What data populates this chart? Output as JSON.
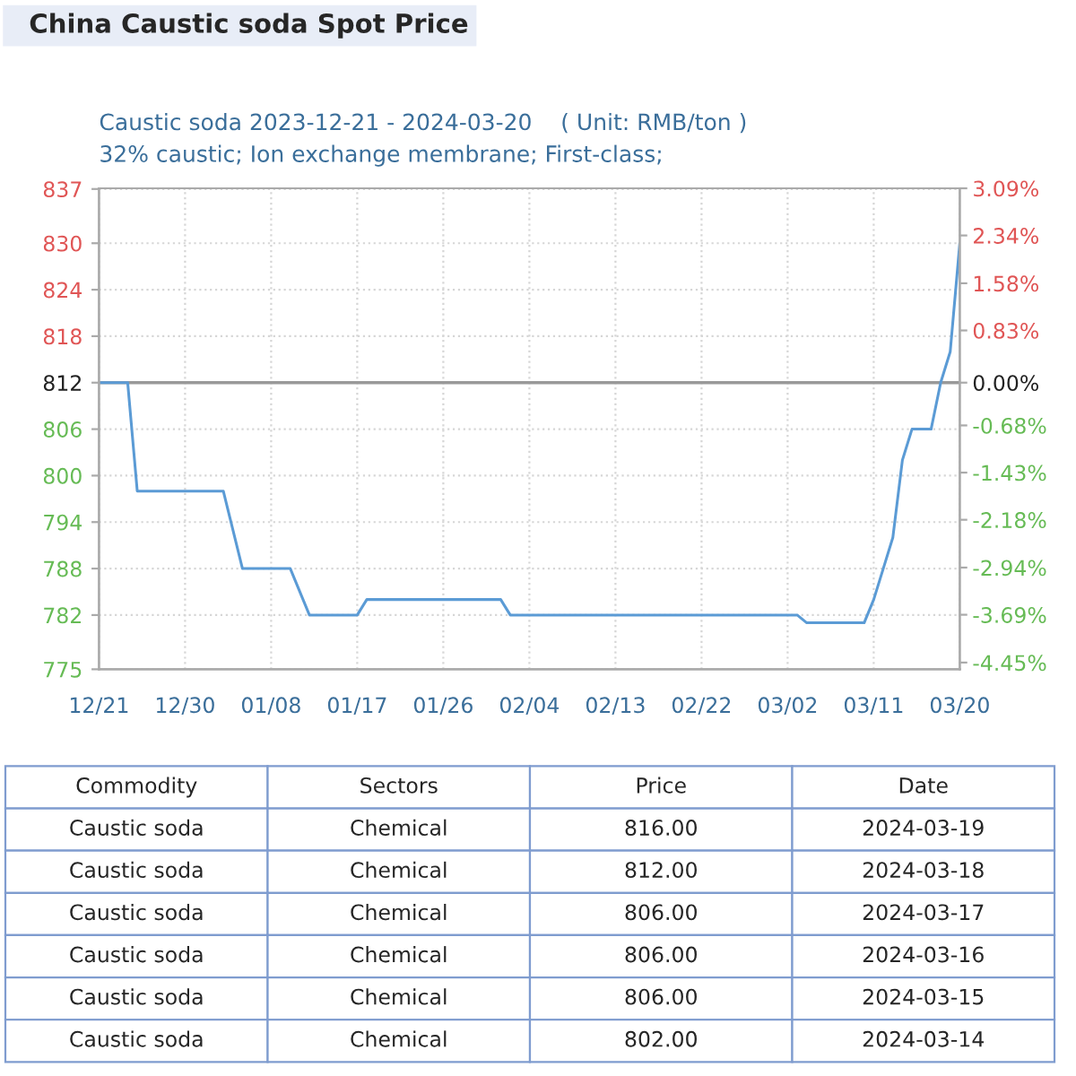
{
  "chart_data": [
    {
      "type": "line",
      "title": "China Caustic soda Spot Price",
      "subtitle": "Caustic soda 2023-12-21 - 2024-03-20    ( Unit: RMB/ton )\n32% caustic; Ion exchange membrane; First-class;",
      "x": [
        "2023-12-21",
        "2023-12-24",
        "2023-12-25",
        "2024-01-03",
        "2024-01-05",
        "2024-01-10",
        "2024-01-12",
        "2024-01-17",
        "2024-01-18",
        "2024-02-01",
        "2024-02-02",
        "2024-03-03",
        "2024-03-04",
        "2024-03-10",
        "2024-03-11",
        "2024-03-12",
        "2024-03-13",
        "2024-03-14",
        "2024-03-15",
        "2024-03-16",
        "2024-03-17",
        "2024-03-18",
        "2024-03-19",
        "2024-03-20"
      ],
      "series": [
        {
          "color": "#5b9bd5",
          "values": [
            812,
            812,
            798,
            798,
            788,
            788,
            782,
            782,
            784,
            784,
            782,
            782,
            781,
            781,
            784,
            788,
            792,
            802,
            806,
            806,
            806,
            812,
            816,
            830
          ]
        }
      ],
      "xlim": [
        "2023-12-21",
        "2024-03-20"
      ],
      "xticks": [
        {
          "value": "2023-12-21",
          "label": "12/21"
        },
        {
          "value": "2023-12-30",
          "label": "12/30"
        },
        {
          "value": "2024-01-08",
          "label": "01/08"
        },
        {
          "value": "2024-01-17",
          "label": "01/17"
        },
        {
          "value": "2024-01-26",
          "label": "01/26"
        },
        {
          "value": "2024-02-04",
          "label": "02/04"
        },
        {
          "value": "2024-02-13",
          "label": "02/13"
        },
        {
          "value": "2024-02-22",
          "label": "02/22"
        },
        {
          "value": "2024-03-02",
          "label": "03/02"
        },
        {
          "value": "2024-03-11",
          "label": "03/11"
        },
        {
          "value": "2024-03-20",
          "label": "03/20"
        }
      ],
      "ylim": [
        775,
        837.09
      ],
      "yticks": [
        775,
        782,
        788,
        794,
        800,
        806,
        812,
        818,
        824,
        830,
        837
      ],
      "y2lim": [
        -4.557,
        3.09
      ],
      "y2ticks": [
        {
          "value": -4.45,
          "label": "-4.45%"
        },
        {
          "value": -3.69,
          "label": "-3.69%"
        },
        {
          "value": -2.94,
          "label": "-2.94%"
        },
        {
          "value": -2.18,
          "label": "-2.18%"
        },
        {
          "value": -1.43,
          "label": "-1.43%"
        },
        {
          "value": -0.68,
          "label": "-0.68%"
        },
        {
          "value": 0,
          "label": "0.00%"
        },
        {
          "value": 0.83,
          "label": "0.83%"
        },
        {
          "value": 1.58,
          "label": "1.58%"
        },
        {
          "value": 2.34,
          "label": "2.34%"
        },
        {
          "value": 3.09,
          "label": "3.09%"
        }
      ],
      "ref_lines": [
        {
          "axis": "y",
          "value": 812,
          "color": "#999999"
        }
      ],
      "grid": true,
      "legend": false,
      "line_style": "solid"
    },
    {
      "type": "other",
      "annotations": [
        "Commodity",
        "Sectors",
        "Price",
        "Date",
        "Caustic soda",
        "Chemical",
        "816.00",
        "2024-03-19",
        "Caustic soda",
        "Chemical",
        "812.00",
        "2024-03-18",
        "Caustic soda",
        "Chemical",
        "806.00",
        "2024-03-17",
        "Caustic soda",
        "Chemical",
        "806.00",
        "2024-03-16",
        "Caustic soda",
        "Chemical",
        "806.00",
        "2024-03-15",
        "Caustic soda",
        "Chemical",
        "802.00",
        "2024-03-14"
      ]
    }
  ]
}
